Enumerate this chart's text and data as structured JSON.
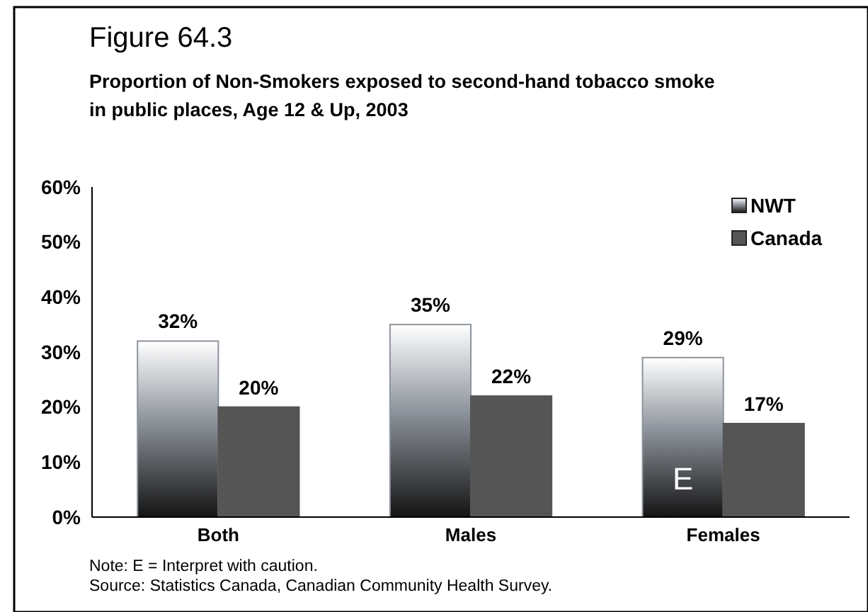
{
  "chart_data": {
    "type": "bar",
    "title": "Figure 64.3",
    "subtitle": "Proportion of Non-Smokers exposed to second-hand tobacco smoke in public places, Age 12 & Up, 2003",
    "categories": [
      "Both",
      "Males",
      "Females"
    ],
    "series": [
      {
        "name": "NWT",
        "color": "#8e949c",
        "values": [
          32,
          35,
          29
        ],
        "value_labels": [
          "32%",
          "35%",
          "29%"
        ]
      },
      {
        "name": "Canada",
        "color": "#555555",
        "values": [
          20,
          22,
          17
        ],
        "value_labels": [
          "20%",
          "22%",
          "17%"
        ]
      }
    ],
    "ylim": [
      0,
      60
    ],
    "yticks": [
      {
        "value": 0,
        "label": "0%"
      },
      {
        "value": 10,
        "label": "10%"
      },
      {
        "value": 20,
        "label": "20%"
      },
      {
        "value": 30,
        "label": "30%"
      },
      {
        "value": 40,
        "label": "40%"
      },
      {
        "value": 50,
        "label": "50%"
      },
      {
        "value": 60,
        "label": "60%"
      }
    ],
    "grid": false,
    "legend": "top right",
    "annotations": [
      {
        "text": "E",
        "x": "Females",
        "y": 7
      },
      "Note: E = Interpret with caution.",
      "Source: Statistics Canada, Canadian Community Health Survey."
    ]
  }
}
